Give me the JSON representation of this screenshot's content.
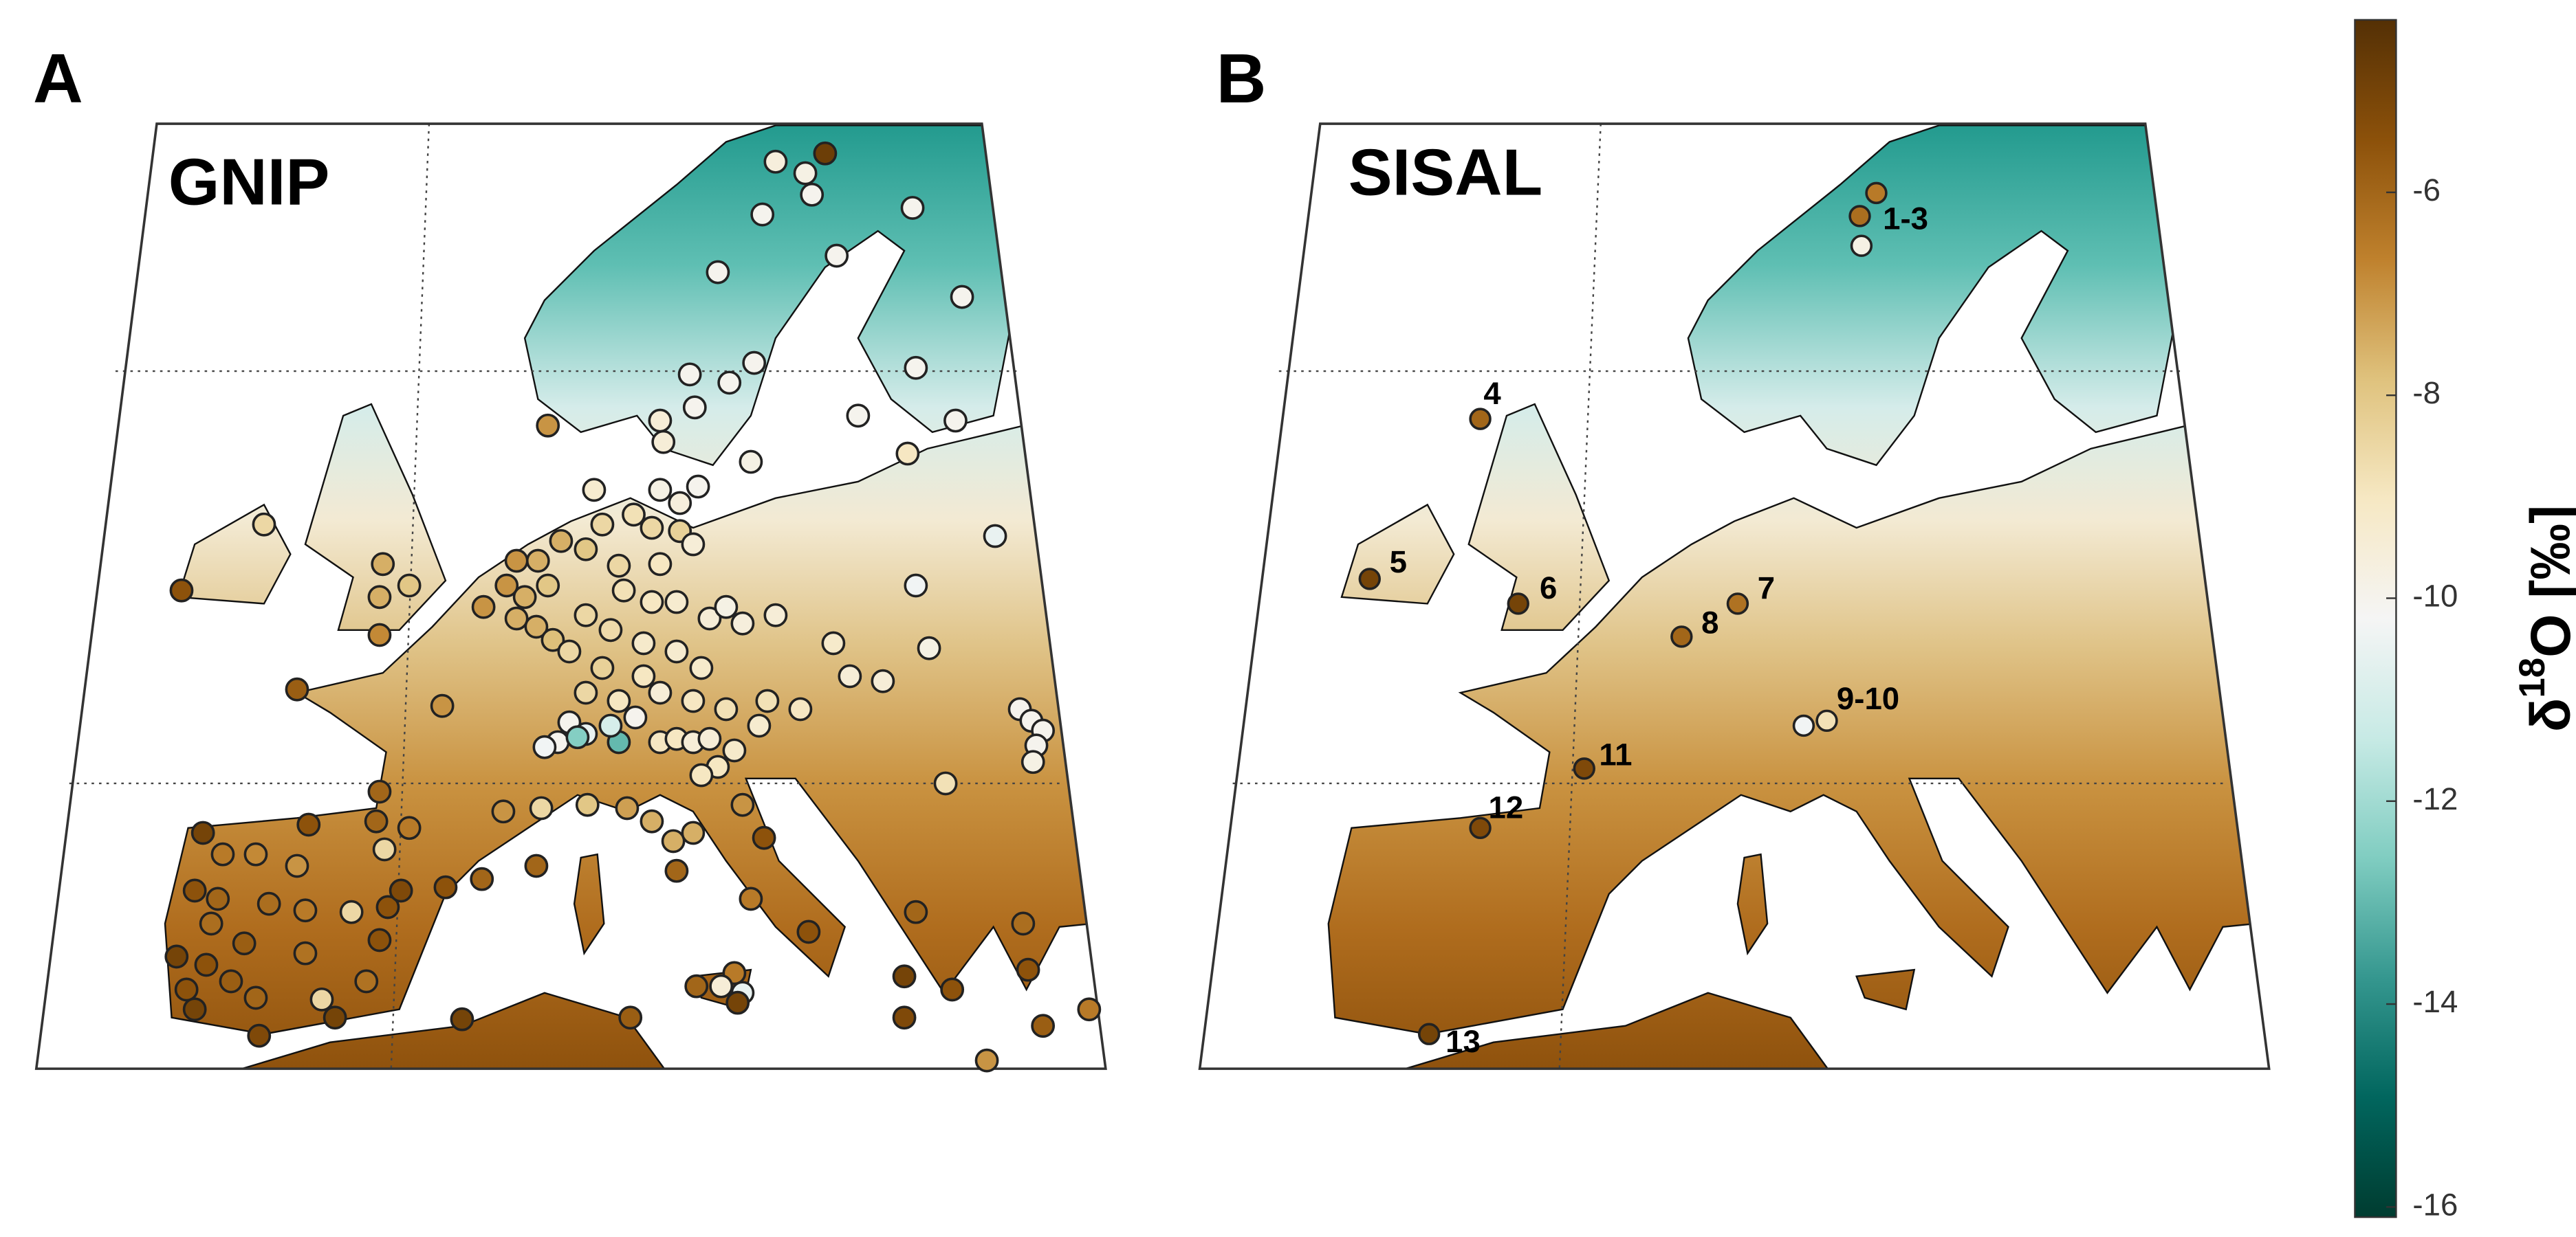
{
  "panels": [
    {
      "letter": "A",
      "title": "GNIP",
      "values": [
        -4.8,
        -9.6,
        -9.8,
        -10,
        -10,
        -10,
        -10,
        -10,
        -10,
        -10,
        -10,
        -10,
        -10,
        -9.5,
        -10,
        -10,
        -10,
        -7,
        -9.5,
        -9.8,
        -9,
        -9.3,
        -9.8,
        -10,
        -9.6,
        -8.8,
        -8.5,
        -8.5,
        -8.3,
        -10.5,
        -10.3,
        -8.5,
        -5.5,
        -7.5,
        -8,
        -7.5,
        -6.8,
        -7.5,
        -7.5,
        -7,
        -8,
        -8.5,
        -9,
        -9.5,
        -7,
        -7.5,
        -8,
        -7,
        -7.5,
        -7.5,
        -7.8,
        -8.5,
        -8.8,
        -9,
        -9.3,
        -9.5,
        -9.8,
        -9.6,
        -9.5,
        -8.5,
        -8.6,
        -9.2,
        -9.3,
        -8.3,
        -9,
        -9.2,
        -9.2,
        -9.5,
        -9.5,
        -9.8,
        -5.8,
        -7,
        -8.5,
        -9,
        -9.5,
        -9,
        -8.8,
        -8.8,
        -9,
        -10,
        -10.5,
        -10,
        -10.3,
        -12.5,
        -13,
        -11,
        -10,
        -9,
        -9,
        -9.5,
        -9.5,
        -9.2,
        -9,
        -9,
        -9.3,
        -10,
        -10,
        -10,
        -10,
        -9.8,
        -8.8,
        -7,
        -8.5,
        -8,
        -7.2,
        -7.5,
        -7.5,
        -7.5,
        -7,
        -6,
        -6,
        -6.5,
        -5.5,
        -6,
        -6,
        -6,
        -5.5,
        -6.5,
        -5.5,
        -6.5,
        -5,
        -5.5,
        -8.5,
        -6.5,
        -6.8,
        -7,
        -5.5,
        -6,
        -6.2,
        -6.5,
        -8.5,
        -5.5,
        -5.2,
        -6.2,
        -5.8,
        -6.3,
        -5.5,
        -5,
        -5.5,
        -5.8,
        -5.5,
        -6,
        -8.5,
        -6.3,
        -5,
        -5,
        -5.2,
        -5,
        -5.8,
        -6,
        -9.5,
        -10.5,
        -5,
        -5,
        -5.2,
        -5.5,
        -5.5,
        -5.8,
        -6.5,
        -7,
        -6,
        -6.2
      ]
    },
    {
      "letter": "B",
      "title": "SISAL",
      "sites": [
        {
          "label": "1-3",
          "values": [
            -6.5,
            -6.2,
            -9.8
          ]
        },
        {
          "label": "4",
          "values": [
            -6
          ]
        },
        {
          "label": "5",
          "values": [
            -5
          ]
        },
        {
          "label": "6",
          "values": [
            -5
          ]
        },
        {
          "label": "7",
          "values": [
            -6.3
          ]
        },
        {
          "label": "8",
          "values": [
            -6
          ]
        },
        {
          "label": "9-10",
          "values": [
            -10.3,
            -8.8
          ]
        },
        {
          "label": "11",
          "values": [
            -5.2
          ]
        },
        {
          "label": "12",
          "values": [
            -5.2
          ]
        },
        {
          "label": "13",
          "values": [
            -5
          ]
        }
      ]
    }
  ],
  "colorbar": {
    "label_prefix": "δ",
    "label_sup": "18",
    "label_suffix": "O [‰]",
    "lim": [
      -16.1,
      -4.3
    ],
    "ticks": [
      -6,
      -8,
      -10,
      -12,
      -14,
      -16
    ],
    "colors": [
      "#003c30",
      "#01665e",
      "#35978f",
      "#80cdc1",
      "#c7eae5",
      "#f5f5f5",
      "#f6e8c3",
      "#dfc27d",
      "#bf812d",
      "#8c510a",
      "#543005"
    ]
  }
}
